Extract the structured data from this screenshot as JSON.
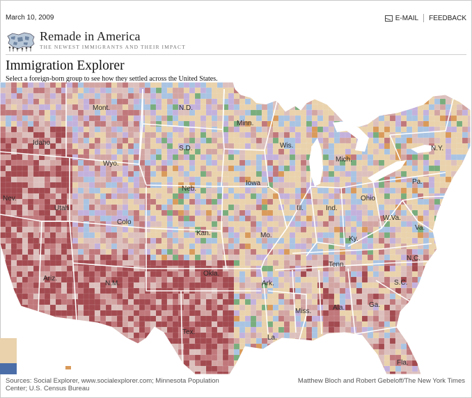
{
  "header": {
    "date": "March 10, 2009",
    "email_label": "E-MAIL",
    "feedback_label": "FEEDBACK"
  },
  "brand": {
    "title": "Remade in America",
    "subtitle": "THE NEWEST IMMIGRANTS AND THEIR IMPACT"
  },
  "page": {
    "title": "Immigration Explorer",
    "instructions": "Select a foreign-born group to see how they settled across the United States."
  },
  "map": {
    "state_labels": [
      "Mont.",
      "N.D.",
      "Minn.",
      "Wis.",
      "Mich.",
      "N.Y.",
      "Idaho",
      "Wyo.",
      "S.D.",
      "Iowa",
      "Neb.",
      "Nev.",
      "Utah",
      "Colo",
      "Kan.",
      "Mo.",
      "Ill.",
      "Ind.",
      "Ohio",
      "Pa.",
      "W.Va.",
      "Va.",
      "Ky.",
      "Tenn.",
      "N.C.",
      "S.C.",
      "Ariz.",
      "N.M.",
      "Okla.",
      "Ark.",
      "Miss.",
      "Ala.",
      "Ga.",
      "Tex.",
      "La.",
      "Fla."
    ],
    "colors": {
      "dark_red": "#a24a4f",
      "mid_red": "#c0787b",
      "pink": "#d2a5a3",
      "light_pink": "#dcc0bd",
      "tan": "#e9d2ac",
      "light_blue": "#a9c3e2",
      "lavender": "#c3b1dc",
      "green": "#79ad7d",
      "orange": "#d99a5a",
      "water": "#ffffff"
    }
  },
  "footer": {
    "sources": "Sources: Social Explorer, www.socialexplorer.com; Minnesota Population Center; U.S. Census Bureau",
    "credit": "Matthew Bloch and Robert Gebeloff/The New York Times"
  }
}
